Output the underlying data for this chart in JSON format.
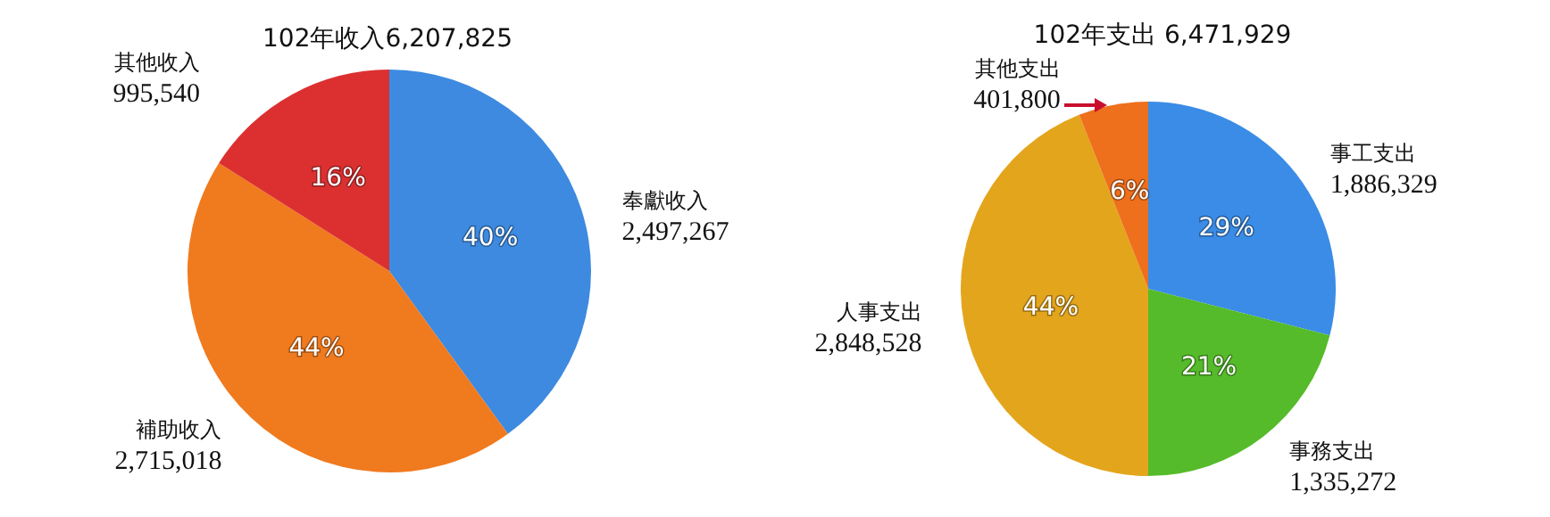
{
  "chart_data": [
    {
      "type": "pie",
      "title": "102年收入6,207,825",
      "categories": [
        "奉獻收入\n2,497,267",
        "補助收入\n2,715,018",
        "其他收入\n995,540"
      ],
      "values": [
        40,
        44,
        16
      ],
      "colors": [
        "#3d8ae0",
        "#f07a1e",
        "#dc3030"
      ],
      "value_labels": [
        "40%",
        "44%",
        "16%"
      ],
      "legend": false
    },
    {
      "type": "pie",
      "title": "102年支出 6,471,929",
      "categories": [
        "事工支出\n1,886,329",
        "事務支出\n1,335,272",
        "人事支出\n2,848,528",
        "其他支出\n401,800"
      ],
      "values": [
        29,
        21,
        44,
        6
      ],
      "colors": [
        "#3a8ce6",
        "#55bb2a",
        "#e3a51c",
        "#ee6f1c"
      ],
      "value_labels": [
        "29%",
        "21%",
        "44%",
        "6%"
      ],
      "legend": false
    }
  ]
}
